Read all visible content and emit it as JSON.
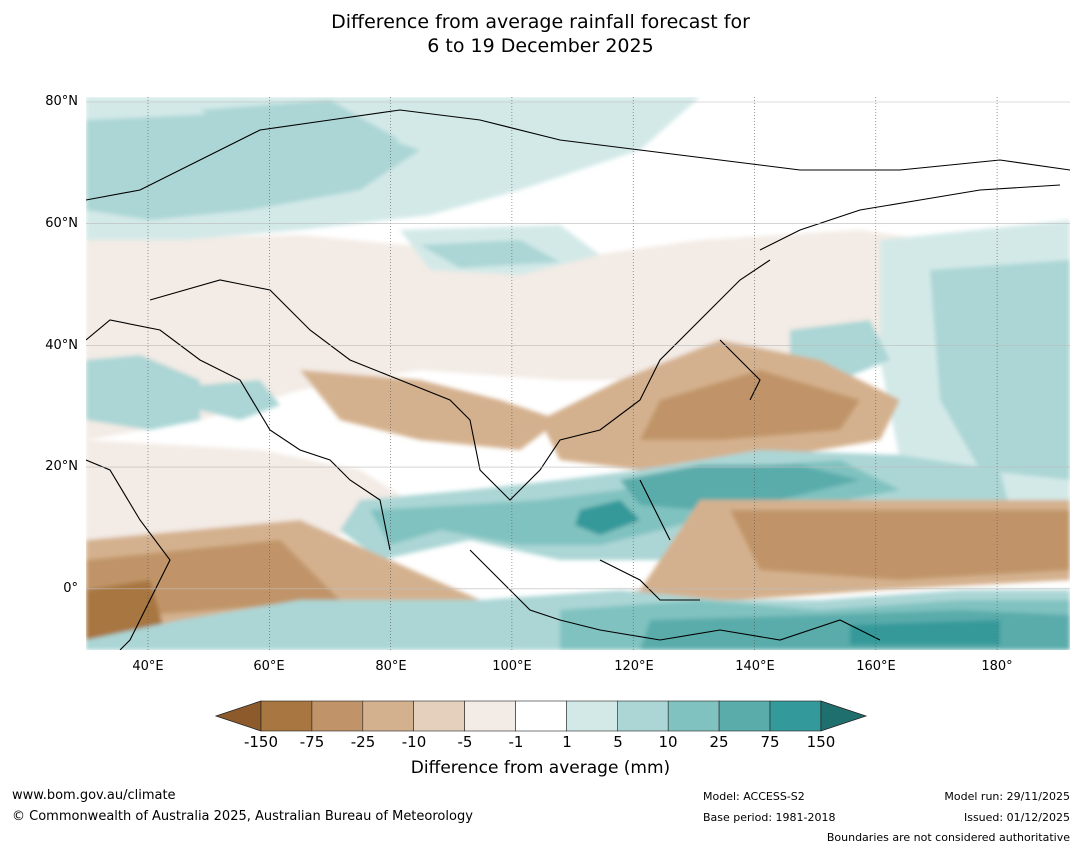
{
  "title": {
    "line1": "Difference from average rainfall forecast for",
    "line2": "6 to 19 December 2025"
  },
  "axes": {
    "lat_labels": [
      "80°N",
      "60°N",
      "40°N",
      "20°N",
      "0°"
    ],
    "lon_labels": [
      "40°E",
      "60°E",
      "80°E",
      "100°E",
      "120°E",
      "140°E",
      "160°E",
      "180°"
    ]
  },
  "legend": {
    "title": "Difference from average (mm)",
    "ticks": [
      "-150",
      "-75",
      "-25",
      "-10",
      "-5",
      "-1",
      "1",
      "5",
      "10",
      "25",
      "75",
      "150"
    ],
    "colors": [
      "#8c5a2b",
      "#a87640",
      "#c09468",
      "#d4b18e",
      "#e5d0bd",
      "#f3ebe5",
      "#ffffff",
      "#d3e9e8",
      "#abd6d5",
      "#80c2c0",
      "#5aacab",
      "#34999a",
      "#1f6f6e"
    ]
  },
  "footer": {
    "website": "www.bom.gov.au/climate",
    "copyright": "© Commonwealth of Australia 2025, Australian Bureau of Meteorology",
    "model": "Model: ACCESS-S2",
    "base_period": "Base period: 1981-2018",
    "model_run": "Model run: 29/11/2025",
    "issued": "Issued: 01/12/2025",
    "disclaimer": "Boundaries are not considered authoritative"
  }
}
